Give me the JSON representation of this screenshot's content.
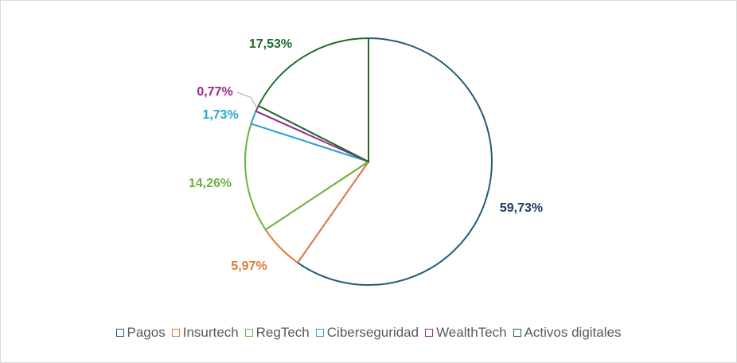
{
  "chart_data": {
    "type": "pie",
    "title": "",
    "slices": [
      {
        "name": "Pagos",
        "value": 59.73,
        "label": "59,73%",
        "color": "#1f5c7a",
        "label_color": "#203864"
      },
      {
        "name": "Insurtech",
        "value": 5.97,
        "label": "5,97%",
        "color": "#e0783a",
        "label_color": "#e0783a"
      },
      {
        "name": "RegTech",
        "value": 14.26,
        "label": "14,26%",
        "color": "#6db33f",
        "label_color": "#6db33f"
      },
      {
        "name": "Ciberseguridad",
        "value": 1.73,
        "label": "1,73%",
        "color": "#2ea3cf",
        "label_color": "#2ea3cf"
      },
      {
        "name": "WealthTech",
        "value": 0.77,
        "label": "0,77%",
        "color": "#9b2a8a",
        "label_color": "#9b2a8a"
      },
      {
        "name": "Activos digitales",
        "value": 17.53,
        "label": "17,53%",
        "color": "#1e6b2e",
        "label_color": "#1e6b2e"
      }
    ],
    "legend_position": "bottom"
  }
}
